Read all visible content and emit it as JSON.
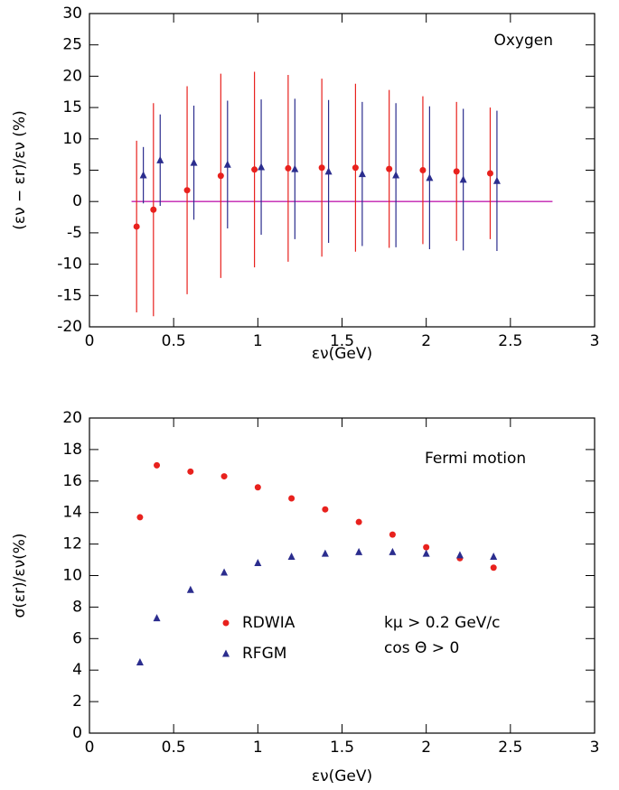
{
  "chart_data": [
    {
      "type": "scatter",
      "y_label": "(εν − εr)/εν (%)",
      "x_label": "εν(GeV)",
      "annotations": [
        {
          "text": "Oxygen",
          "color": "#e8211d"
        }
      ],
      "xlim": [
        0,
        3
      ],
      "xticks": [
        0,
        0.5,
        1,
        1.5,
        2,
        2.5,
        3
      ],
      "ylim": [
        -20,
        30
      ],
      "yticks": [
        -20,
        -15,
        -10,
        -5,
        0,
        5,
        10,
        15,
        20,
        25,
        30
      ],
      "reference_line": {
        "y": 0,
        "x": [
          0.25,
          2.75
        ],
        "color": "#c020b0"
      },
      "series": [
        {
          "color": "#e8211d",
          "marker": "circle",
          "x": [
            0.28,
            0.38,
            0.58,
            0.78,
            0.98,
            1.18,
            1.38,
            1.58,
            1.78,
            1.98,
            2.18,
            2.38
          ],
          "values": [
            -4.0,
            -1.3,
            1.8,
            4.1,
            5.1,
            5.3,
            5.4,
            5.4,
            5.2,
            5.0,
            4.8,
            4.5
          ],
          "errors": [
            13.7,
            17.0,
            16.6,
            16.3,
            15.6,
            14.9,
            14.2,
            13.4,
            12.6,
            11.8,
            11.1,
            10.5
          ]
        },
        {
          "color": "#2b2d8e",
          "marker": "triangle",
          "x": [
            0.32,
            0.42,
            0.62,
            0.82,
            1.02,
            1.22,
            1.42,
            1.62,
            1.82,
            2.02,
            2.22,
            2.42
          ],
          "values": [
            4.2,
            6.6,
            6.2,
            5.9,
            5.5,
            5.2,
            4.8,
            4.4,
            4.2,
            3.8,
            3.5,
            3.3
          ],
          "errors": [
            4.5,
            7.3,
            9.1,
            10.2,
            10.8,
            11.2,
            11.4,
            11.5,
            11.5,
            11.4,
            11.3,
            11.2
          ]
        }
      ]
    },
    {
      "type": "scatter",
      "y_label": "σ(εr)/εν(%)",
      "x_label": "εν(GeV)",
      "annotations": [
        {
          "text": "Fermi motion",
          "color": "#e8211d"
        },
        {
          "text": "kμ > 0.2 GeV/c",
          "color": "#e8211d"
        },
        {
          "text": "cos Θ > 0",
          "color": "#e8211d"
        }
      ],
      "xlim": [
        0,
        3
      ],
      "xticks": [
        0,
        0.5,
        1,
        1.5,
        2,
        2.5,
        3
      ],
      "ylim": [
        0,
        20
      ],
      "yticks": [
        0,
        2,
        4,
        6,
        8,
        10,
        12,
        14,
        16,
        18,
        20
      ],
      "series": [
        {
          "name": "RDWIA",
          "color": "#e8211d",
          "marker": "circle",
          "x": [
            0.3,
            0.4,
            0.6,
            0.8,
            1.0,
            1.2,
            1.4,
            1.6,
            1.8,
            2.0,
            2.2,
            2.4
          ],
          "values": [
            13.7,
            17.0,
            16.6,
            16.3,
            15.6,
            14.9,
            14.2,
            13.4,
            12.6,
            11.8,
            11.1,
            10.5
          ]
        },
        {
          "name": "RFGM",
          "color": "#2b2d8e",
          "marker": "triangle",
          "x": [
            0.3,
            0.4,
            0.6,
            0.8,
            1.0,
            1.2,
            1.4,
            1.6,
            1.8,
            2.0,
            2.2,
            2.4
          ],
          "values": [
            4.5,
            7.3,
            9.1,
            10.2,
            10.8,
            11.2,
            11.4,
            11.5,
            11.5,
            11.4,
            11.3,
            11.2
          ]
        }
      ]
    }
  ]
}
